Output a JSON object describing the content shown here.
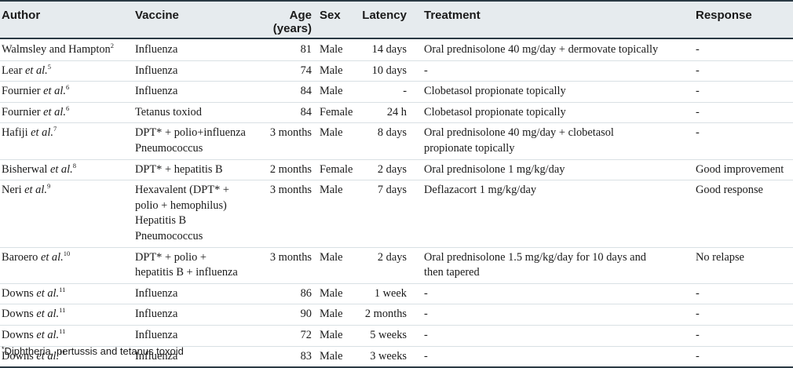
{
  "headers": {
    "author": "Author",
    "vaccine": "Vaccine",
    "age_line1": "Age",
    "age_line2": "(years)",
    "sex": "Sex",
    "latency": "Latency",
    "treatment": "Treatment",
    "response": "Response"
  },
  "rows": [
    {
      "author": "Walmsley and Hampton",
      "etal": "",
      "ref": "2",
      "vaccine": [
        "Influenza"
      ],
      "age": "81",
      "sex": "Male",
      "latency": "14 days",
      "treatment": [
        "Oral prednisolone 40 mg/day + dermovate topically"
      ],
      "response": "-"
    },
    {
      "author": "Lear ",
      "etal": "et al.",
      "ref": "5",
      "vaccine": [
        "Influenza"
      ],
      "age": "74",
      "sex": "Male",
      "latency": "10 days",
      "treatment": [
        "-"
      ],
      "response": "-"
    },
    {
      "author": "Fournier ",
      "etal": "et al.",
      "ref": "6",
      "vaccine": [
        "Influenza"
      ],
      "age": "84",
      "sex": "Male",
      "latency": "-",
      "treatment": [
        "Clobetasol propionate topically"
      ],
      "response": "-"
    },
    {
      "author": "Fournier ",
      "etal": "et al.",
      "ref": "6",
      "vaccine": [
        "Tetanus toxiod"
      ],
      "age": "84",
      "sex": "Female",
      "latency": "24 h",
      "treatment": [
        "Clobetasol propionate topically"
      ],
      "response": "-"
    },
    {
      "author": "Hafiji ",
      "etal": "et al.",
      "ref": "7",
      "vaccine": [
        "DPT* + polio+influenza",
        "Pneumococcus"
      ],
      "age": "3 months",
      "sex": "Male",
      "latency": "8 days",
      "treatment": [
        "Oral prednisolone 40 mg/day + clobetasol",
        "propionate topically"
      ],
      "response": "-"
    },
    {
      "author": "Bisherwal ",
      "etal": "et al.",
      "ref": "8",
      "vaccine": [
        "DPT* + hepatitis B"
      ],
      "age": "2 months",
      "sex": "Female",
      "latency": "2 days",
      "treatment": [
        "Oral prednisolone 1 mg/kg/day"
      ],
      "response": "Good improvement"
    },
    {
      "author": "Neri ",
      "etal": "et al.",
      "ref": "9",
      "vaccine": [
        "Hexavalent (DPT* +",
        "polio + hemophilus)",
        "Hepatitis B",
        "Pneumococcus"
      ],
      "age": "3 months",
      "sex": "Male",
      "latency": "7 days",
      "treatment": [
        "Deflazacort 1 mg/kg/day"
      ],
      "response": "Good response"
    },
    {
      "author": "Baroero ",
      "etal": "et al.",
      "ref": "10",
      "vaccine": [
        "DPT* + polio +",
        "hepatitis B + influenza"
      ],
      "age": "3 months",
      "sex": "Male",
      "latency": "2 days",
      "treatment": [
        "Oral prednisolone 1.5 mg/kg/day for 10 days and",
        "then tapered"
      ],
      "response": "No relapse"
    },
    {
      "author": "Downs ",
      "etal": "et al.",
      "ref": "11",
      "vaccine": [
        "Influenza"
      ],
      "age": "86",
      "sex": "Male",
      "latency": "1 week",
      "treatment": [
        "-"
      ],
      "response": "-"
    },
    {
      "author": "Downs ",
      "etal": "et al.",
      "ref": "11",
      "vaccine": [
        "Influenza"
      ],
      "age": "90",
      "sex": "Male",
      "latency": "2 months",
      "treatment": [
        "-"
      ],
      "response": "-"
    },
    {
      "author": "Downs ",
      "etal": "et al.",
      "ref": "11",
      "vaccine": [
        "Influenza"
      ],
      "age": "72",
      "sex": "Male",
      "latency": "5 weeks",
      "treatment": [
        "-"
      ],
      "response": "-"
    },
    {
      "author": "Downs ",
      "etal": "et al.",
      "ref": "11",
      "vaccine": [
        "Influenza"
      ],
      "age": "83",
      "sex": "Male",
      "latency": "3 weeks",
      "treatment": [
        "-"
      ],
      "response": "-"
    }
  ],
  "footnote": {
    "mark": "*",
    "text": "Diphtheria, pertussis and tetanus toxoid"
  }
}
